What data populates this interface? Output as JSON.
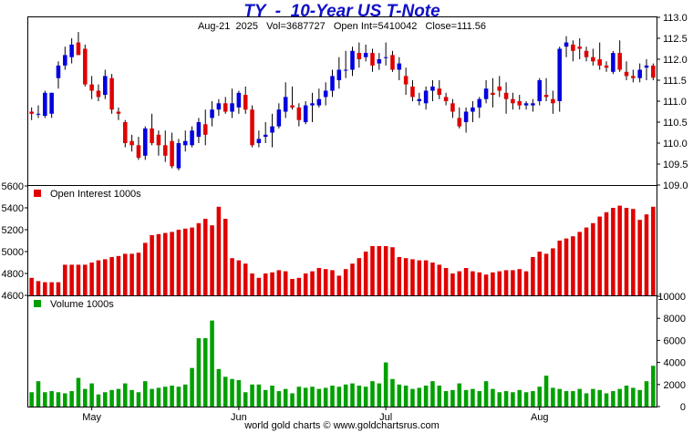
{
  "title": "TY  -  10-Year US T-Note",
  "subtitle": "Aug-21  2025   Vol=3687727   Open Int=5410042   Close=111.56",
  "footer": "world gold charts © www.goldchartsrus.com",
  "colors": {
    "up": "#0000e0",
    "down": "#e00000",
    "open_interest": "#e00000",
    "volume": "#00a000",
    "title": "#1010c8"
  },
  "chart_data": [
    {
      "type": "candlestick",
      "name": "price",
      "ylim": [
        109.0,
        113.0
      ],
      "ticks": [
        "109.0",
        "109.5",
        "110.0",
        "110.5",
        "111.0",
        "111.5",
        "112.0",
        "112.5",
        "113.0"
      ],
      "x_labels": [
        {
          "label": "May",
          "index": 9
        },
        {
          "label": "Jun",
          "index": 31
        },
        {
          "label": "Jul",
          "index": 53
        },
        {
          "label": "Aug",
          "index": 76
        }
      ],
      "ohlc": [
        [
          110.75,
          110.85,
          110.55,
          110.7
        ],
        [
          110.7,
          110.9,
          110.6,
          110.7
        ],
        [
          110.65,
          111.25,
          110.6,
          111.2
        ],
        [
          110.7,
          111.2,
          110.6,
          111.2
        ],
        [
          111.55,
          111.95,
          111.3,
          111.85
        ],
        [
          111.85,
          112.3,
          111.75,
          112.1
        ],
        [
          112.05,
          112.5,
          111.9,
          112.35
        ],
        [
          112.4,
          112.65,
          112.1,
          112.1
        ],
        [
          112.25,
          112.35,
          111.35,
          111.4
        ],
        [
          111.4,
          111.6,
          111.05,
          111.25
        ],
        [
          111.25,
          111.4,
          111.0,
          111.1
        ],
        [
          111.15,
          111.75,
          111.05,
          111.6
        ],
        [
          111.55,
          111.65,
          110.7,
          110.8
        ],
        [
          110.75,
          110.85,
          110.55,
          110.7
        ],
        [
          110.5,
          110.55,
          109.9,
          110.0
        ],
        [
          110.05,
          110.2,
          109.8,
          109.95
        ],
        [
          109.95,
          110.15,
          109.6,
          109.65
        ],
        [
          109.7,
          110.4,
          109.6,
          110.35
        ],
        [
          110.35,
          110.7,
          109.95,
          110.0
        ],
        [
          110.2,
          110.3,
          109.7,
          109.95
        ],
        [
          109.95,
          110.3,
          109.55,
          109.7
        ],
        [
          110.05,
          110.25,
          109.4,
          109.45
        ],
        [
          109.4,
          110.1,
          109.35,
          110.0
        ],
        [
          109.95,
          110.3,
          109.8,
          110.05
        ],
        [
          109.95,
          110.4,
          109.9,
          110.3
        ],
        [
          110.15,
          110.6,
          110.0,
          110.5
        ],
        [
          110.45,
          110.8,
          109.95,
          110.2
        ],
        [
          110.6,
          111.0,
          110.4,
          110.8
        ],
        [
          110.8,
          111.05,
          110.65,
          110.95
        ],
        [
          110.95,
          111.1,
          110.7,
          110.75
        ],
        [
          110.75,
          111.3,
          110.6,
          110.95
        ],
        [
          110.85,
          111.25,
          110.7,
          111.2
        ],
        [
          111.15,
          111.35,
          110.7,
          110.8
        ],
        [
          110.8,
          110.9,
          109.9,
          109.95
        ],
        [
          110.0,
          110.3,
          109.9,
          110.1
        ],
        [
          110.15,
          110.5,
          110.0,
          110.2
        ],
        [
          110.25,
          110.7,
          109.9,
          110.4
        ],
        [
          110.4,
          110.95,
          110.35,
          110.8
        ],
        [
          110.75,
          111.45,
          110.6,
          111.1
        ],
        [
          110.9,
          111.35,
          110.8,
          110.85
        ],
        [
          110.85,
          110.95,
          110.4,
          110.55
        ],
        [
          110.5,
          111.0,
          110.45,
          110.9
        ],
        [
          110.9,
          111.2,
          110.5,
          110.95
        ],
        [
          110.9,
          111.3,
          110.85,
          111.05
        ],
        [
          111.1,
          111.45,
          110.9,
          111.25
        ],
        [
          111.25,
          111.75,
          111.1,
          111.6
        ],
        [
          111.5,
          112.05,
          111.3,
          111.75
        ],
        [
          111.75,
          112.2,
          111.55,
          111.75
        ],
        [
          111.75,
          112.3,
          111.6,
          112.2
        ],
        [
          112.15,
          112.4,
          111.8,
          112.0
        ],
        [
          112.05,
          112.35,
          111.95,
          112.15
        ],
        [
          112.15,
          112.25,
          111.7,
          111.85
        ],
        [
          111.9,
          112.15,
          111.75,
          112.0
        ],
        [
          112.05,
          112.4,
          111.85,
          112.05
        ],
        [
          112.1,
          112.2,
          111.7,
          111.75
        ],
        [
          111.75,
          112.05,
          111.5,
          111.9
        ],
        [
          111.6,
          111.8,
          111.15,
          111.4
        ],
        [
          111.35,
          111.5,
          111.0,
          111.1
        ],
        [
          111.0,
          111.2,
          110.9,
          111.05
        ],
        [
          110.95,
          111.35,
          110.8,
          111.25
        ],
        [
          111.25,
          111.5,
          111.0,
          111.35
        ],
        [
          111.3,
          111.5,
          111.05,
          111.15
        ],
        [
          111.1,
          111.2,
          110.9,
          111.0
        ],
        [
          110.95,
          111.05,
          110.6,
          110.75
        ],
        [
          110.6,
          110.85,
          110.35,
          110.4
        ],
        [
          110.5,
          110.85,
          110.25,
          110.75
        ],
        [
          110.75,
          111.0,
          110.5,
          110.85
        ],
        [
          110.85,
          111.1,
          110.6,
          111.05
        ],
        [
          111.05,
          111.5,
          110.95,
          111.3
        ],
        [
          111.2,
          111.55,
          110.85,
          111.15
        ],
        [
          111.35,
          111.6,
          111.1,
          111.25
        ],
        [
          111.2,
          111.45,
          110.7,
          111.05
        ],
        [
          111.05,
          111.2,
          110.8,
          110.95
        ],
        [
          111.0,
          111.15,
          110.8,
          110.9
        ],
        [
          110.9,
          111.0,
          110.8,
          110.95
        ],
        [
          110.9,
          111.05,
          110.75,
          110.95
        ],
        [
          111.0,
          111.55,
          110.9,
          111.5
        ],
        [
          111.15,
          111.55,
          111.0,
          111.1
        ],
        [
          111.05,
          111.25,
          110.7,
          110.95
        ],
        [
          111.0,
          112.3,
          110.75,
          112.25
        ],
        [
          112.3,
          112.55,
          112.05,
          112.4
        ],
        [
          112.35,
          112.45,
          111.95,
          112.2
        ],
        [
          112.3,
          112.5,
          112.0,
          112.25
        ],
        [
          112.2,
          112.3,
          111.95,
          112.05
        ],
        [
          112.05,
          112.25,
          111.85,
          111.95
        ],
        [
          112.0,
          112.4,
          111.75,
          111.85
        ],
        [
          111.85,
          111.95,
          111.7,
          111.8
        ],
        [
          111.7,
          112.2,
          111.65,
          112.15
        ],
        [
          112.15,
          112.45,
          111.7,
          111.75
        ],
        [
          111.7,
          111.95,
          111.5,
          111.6
        ],
        [
          111.6,
          111.75,
          111.45,
          111.55
        ],
        [
          111.55,
          111.9,
          111.45,
          111.75
        ],
        [
          111.8,
          112.0,
          111.5,
          111.85
        ],
        [
          111.85,
          111.9,
          111.5,
          111.56
        ]
      ]
    },
    {
      "type": "bar",
      "name": "Open Interest  1000s",
      "ylim": [
        4600,
        5600
      ],
      "ticks": [
        "4600",
        "4800",
        "5000",
        "5200",
        "5400",
        "5600"
      ],
      "values": [
        4760,
        4730,
        4720,
        4720,
        4720,
        4880,
        4880,
        4880,
        4880,
        4900,
        4920,
        4930,
        4950,
        4960,
        4980,
        4980,
        4990,
        5080,
        5150,
        5160,
        5170,
        5180,
        5200,
        5210,
        5220,
        5260,
        5300,
        5240,
        5410,
        5300,
        4940,
        4920,
        4890,
        4800,
        4760,
        4800,
        4810,
        4830,
        4820,
        4750,
        4760,
        4800,
        4820,
        4850,
        4840,
        4830,
        4780,
        4840,
        4890,
        4940,
        5000,
        5050,
        5050,
        5050,
        5040,
        4950,
        4940,
        4930,
        4920,
        4920,
        4900,
        4880,
        4850,
        4800,
        4820,
        4850,
        4820,
        4810,
        4790,
        4810,
        4820,
        4830,
        4830,
        4840,
        4820,
        4950,
        5000,
        4980,
        5030,
        5100,
        5120,
        5140,
        5180,
        5220,
        5260,
        5320,
        5360,
        5400,
        5420,
        5400,
        5390,
        5290,
        5340,
        5410
      ]
    },
    {
      "type": "bar",
      "name": "Volume  1000s",
      "ylim": [
        0,
        10000
      ],
      "ticks": [
        "0",
        "2000",
        "4000",
        "6000",
        "8000",
        "10000"
      ],
      "values": [
        1300,
        2300,
        1300,
        1400,
        1300,
        1200,
        1400,
        2600,
        1600,
        2100,
        1100,
        1300,
        1500,
        1600,
        2100,
        1500,
        1300,
        2300,
        1600,
        1700,
        1800,
        1900,
        1800,
        2000,
        3500,
        6200,
        6200,
        7800,
        3400,
        2700,
        2500,
        2400,
        1300,
        2000,
        2000,
        1500,
        1900,
        1400,
        1600,
        1200,
        1800,
        1700,
        1800,
        1600,
        1700,
        1900,
        1800,
        2000,
        2100,
        1900,
        1800,
        2300,
        2100,
        4000,
        2500,
        2000,
        1900,
        1600,
        1700,
        1900,
        2300,
        1900,
        1400,
        1500,
        2100,
        1500,
        1600,
        1400,
        2300,
        1600,
        1300,
        1400,
        1300,
        1500,
        1300,
        1400,
        1800,
        2800,
        1700,
        1600,
        1400,
        1400,
        1600,
        1200,
        1600,
        1500,
        1200,
        1400,
        1600,
        1900,
        1700,
        1500,
        2300,
        3700
      ]
    }
  ]
}
